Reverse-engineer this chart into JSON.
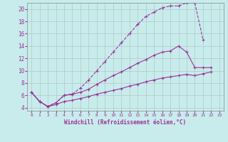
{
  "xlabel": "Windchill (Refroidissement éolien,°C)",
  "background_color": "#c8ecec",
  "grid_color": "#b0c8c8",
  "line_color": "#993399",
  "xlim": [
    -0.5,
    23.5
  ],
  "ylim": [
    3.5,
    21.0
  ],
  "xticks": [
    0,
    1,
    2,
    3,
    4,
    5,
    6,
    7,
    8,
    9,
    10,
    11,
    12,
    13,
    14,
    15,
    16,
    17,
    18,
    19,
    20,
    21,
    22,
    23
  ],
  "yticks": [
    4,
    6,
    8,
    10,
    12,
    14,
    16,
    18,
    20
  ],
  "series": [
    {
      "x": [
        0,
        1,
        2,
        3,
        4,
        5,
        6,
        7,
        8,
        9,
        10,
        11,
        12,
        13,
        14,
        15,
        16,
        17,
        18,
        19,
        20,
        21,
        22,
        23
      ],
      "y": [
        6.5,
        5.0,
        4.2,
        4.8,
        6.0,
        6.2,
        7.2,
        8.5,
        10.0,
        11.5,
        13.0,
        14.5,
        16.0,
        17.5,
        18.8,
        19.5,
        20.2,
        20.5,
        20.5,
        21.0,
        21.0,
        15.0,
        null,
        null
      ],
      "dashed": true
    },
    {
      "x": [
        0,
        1,
        2,
        3,
        4,
        5,
        6,
        7,
        8,
        9,
        10,
        11,
        12,
        13,
        14,
        15,
        16,
        17,
        18,
        19,
        20,
        21,
        22,
        23
      ],
      "y": [
        6.5,
        5.0,
        4.2,
        4.8,
        6.0,
        6.2,
        6.5,
        7.0,
        7.8,
        8.5,
        9.2,
        9.8,
        10.5,
        11.2,
        11.8,
        12.5,
        13.0,
        13.2,
        14.0,
        13.0,
        10.5,
        10.5,
        10.5,
        null
      ],
      "dashed": false
    },
    {
      "x": [
        0,
        1,
        2,
        3,
        4,
        5,
        6,
        7,
        8,
        9,
        10,
        11,
        12,
        13,
        14,
        15,
        16,
        17,
        18,
        19,
        20,
        21,
        22,
        23
      ],
      "y": [
        6.5,
        5.0,
        4.2,
        4.5,
        5.0,
        5.2,
        5.5,
        5.8,
        6.2,
        6.5,
        6.8,
        7.1,
        7.5,
        7.8,
        8.2,
        8.5,
        8.8,
        9.0,
        9.2,
        9.4,
        9.2,
        9.5,
        9.8,
        null
      ],
      "dashed": false
    }
  ],
  "fig_width": 3.2,
  "fig_height": 2.0,
  "dpi": 100
}
